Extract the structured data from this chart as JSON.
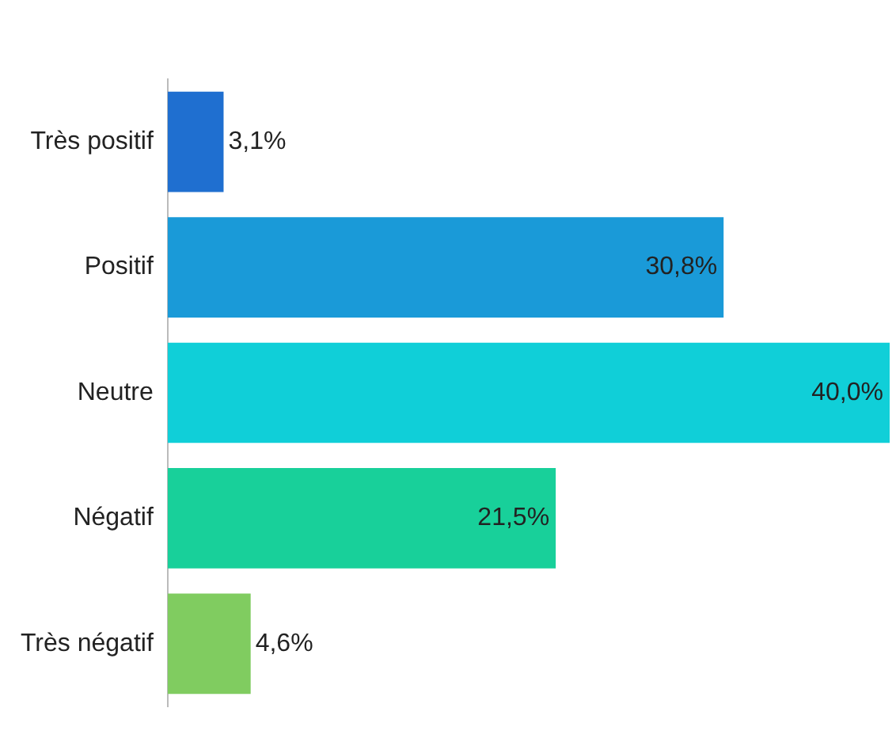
{
  "chart_data": {
    "type": "bar",
    "orientation": "horizontal",
    "categories": [
      "Très positif",
      "Positif",
      "Neutre",
      "Négatif",
      "Très négatif"
    ],
    "values": [
      3.1,
      30.8,
      40.0,
      21.5,
      4.6
    ],
    "colors": [
      "#1f6fd0",
      "#1a9ad8",
      "#10cfd8",
      "#18d09a",
      "#80cc60"
    ],
    "value_labels": [
      "3,1%",
      "30,8%",
      "40,0%",
      "21,5%",
      "4,6%"
    ],
    "legend": false
  }
}
